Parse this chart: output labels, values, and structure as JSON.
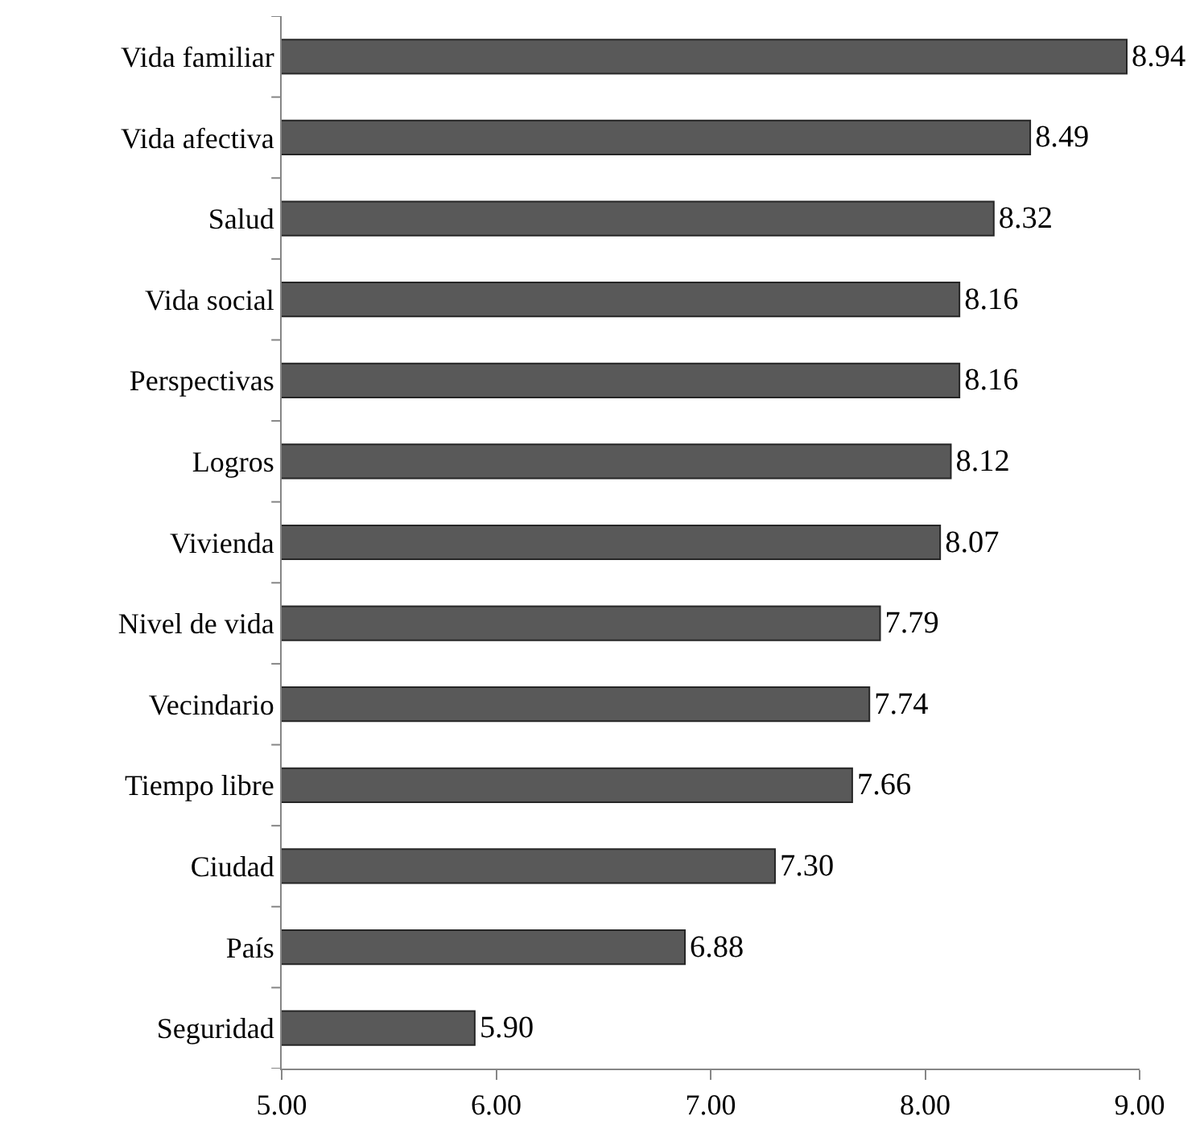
{
  "chart_data": {
    "type": "bar",
    "orientation": "horizontal",
    "categories": [
      "Vida familiar",
      "Vida afectiva",
      "Salud",
      "Vida social",
      "Perspectivas",
      "Logros",
      "Vivienda",
      "Nivel de vida",
      "Vecindario",
      "Tiempo libre",
      "Ciudad",
      "País",
      "Seguridad"
    ],
    "values": [
      8.94,
      8.49,
      8.32,
      8.16,
      8.16,
      8.12,
      8.07,
      7.79,
      7.74,
      7.66,
      7.3,
      6.88,
      5.9
    ],
    "value_labels": [
      "8.94",
      "8.49",
      "8.32",
      "8.16",
      "8.16",
      "8.12",
      "8.07",
      "7.79",
      "7.74",
      "7.66",
      "7.30",
      "6.88",
      "5.90"
    ],
    "color": "#595959",
    "xlim": [
      5,
      9
    ],
    "xticks": [
      {
        "value": 5,
        "label": "5.00"
      },
      {
        "value": 6,
        "label": "6.00"
      },
      {
        "value": 7,
        "label": "7.00"
      },
      {
        "value": 8,
        "label": "8.00"
      },
      {
        "value": 9,
        "label": "9.00"
      }
    ],
    "legend": false
  }
}
